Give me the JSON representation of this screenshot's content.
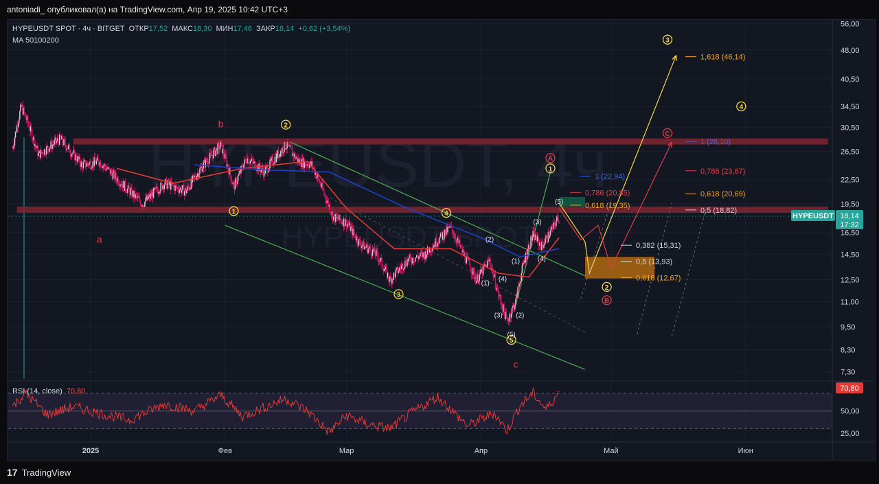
{
  "header": {
    "publish_line": "antoniadi_ опубликовал(а) на TradingView.com, Апр 19, 2025 10:42 UTC+3"
  },
  "legend": {
    "symbol": "HYPEUSDT SPOT · 4ч · BITGET",
    "open_label": "ОТКР",
    "open_value": "17,52",
    "high_label": "МАКС",
    "high_value": "18,30",
    "low_label": "МИН",
    "low_value": "17,46",
    "close_label": "ЗАКР",
    "close_value": "18,14",
    "change": "+0,62 (+3,54%)",
    "ma": "MA 50100200"
  },
  "watermark": {
    "main": "HYPEUSDT, 4ч",
    "sub": "HYPEUSDT SPOT"
  },
  "price_badge": {
    "symbol": "HYPEUSDT",
    "price": "18,14",
    "time": "17:32"
  },
  "rsi": {
    "label": "RSI (14, close)",
    "value_text": "70,80",
    "badge": "70,80"
  },
  "footer": {
    "brand": "TradingView",
    "logo": "17"
  },
  "colors": {
    "background": "#131722",
    "up": "#26a69a",
    "down": "#ef5350",
    "candles": "#c2185b",
    "ma_red": "#e53935",
    "ma_blue": "#1e40c8",
    "wave_yellow": "#f5d742",
    "wave_red": "#e53946",
    "fib_orange": "#f5a623",
    "fib_red": "#e53946",
    "fib_blue": "#3c6be0",
    "channel_green": "#4caf50",
    "zone_red": "#7a2530",
    "zone_orange": "#b06a10",
    "zone_green": "#0f5a46"
  },
  "chart_data": [
    {
      "type": "candlestick",
      "title": "HYPEUSDT SPOT · 4ч · BITGET",
      "x_ticks": [
        "2025",
        "Фев",
        "Мар",
        "Апр",
        "Май",
        "Июн"
      ],
      "y_ticks": [
        "56,00",
        "48,00",
        "40,50",
        "34,50",
        "30,50",
        "26,50",
        "22,50",
        "19,50",
        "16,50",
        "14,50",
        "12,50",
        "11,00",
        "9,50",
        "8,30",
        "7,30"
      ],
      "y_scale": "log",
      "ylim": [
        7.0,
        57.0
      ],
      "last": {
        "open": 17.52,
        "high": 18.3,
        "low": 17.46,
        "close": 18.14
      },
      "price_path_approx": [
        {
          "d": "2024-12-14",
          "v": 27.0
        },
        {
          "d": "2024-12-16",
          "v": 34.5
        },
        {
          "d": "2024-12-20",
          "v": 26.0
        },
        {
          "d": "2024-12-25",
          "v": 28.5
        },
        {
          "d": "2024-12-30",
          "v": 24.5
        },
        {
          "d": "2025-01-03",
          "v": 25.0
        },
        {
          "d": "2025-01-09",
          "v": 21.5
        },
        {
          "d": "2025-01-13",
          "v": 19.5
        },
        {
          "d": "2025-01-18",
          "v": 22.0
        },
        {
          "d": "2025-01-23",
          "v": 21.0
        },
        {
          "d": "2025-01-27",
          "v": 24.5
        },
        {
          "d": "2025-01-31",
          "v": 27.5
        },
        {
          "d": "2025-02-03",
          "v": 21.5
        },
        {
          "d": "2025-02-06",
          "v": 25.5
        },
        {
          "d": "2025-02-10",
          "v": 23.5
        },
        {
          "d": "2025-02-15",
          "v": 27.5
        },
        {
          "d": "2025-02-18",
          "v": 25.0
        },
        {
          "d": "2025-02-21",
          "v": 24.5
        },
        {
          "d": "2025-02-24",
          "v": 20.5
        },
        {
          "d": "2025-02-26",
          "v": 18.0
        },
        {
          "d": "2025-03-01",
          "v": 17.5
        },
        {
          "d": "2025-03-04",
          "v": 15.5
        },
        {
          "d": "2025-03-08",
          "v": 14.5
        },
        {
          "d": "2025-03-11",
          "v": 12.5
        },
        {
          "d": "2025-03-15",
          "v": 14.0
        },
        {
          "d": "2025-03-19",
          "v": 14.5
        },
        {
          "d": "2025-03-25",
          "v": 17.0
        },
        {
          "d": "2025-03-28",
          "v": 14.5
        },
        {
          "d": "2025-03-31",
          "v": 12.5
        },
        {
          "d": "2025-04-03",
          "v": 14.0
        },
        {
          "d": "2025-04-05",
          "v": 11.5
        },
        {
          "d": "2025-04-07",
          "v": 9.8
        },
        {
          "d": "2025-04-09",
          "v": 11.0
        },
        {
          "d": "2025-04-11",
          "v": 14.0
        },
        {
          "d": "2025-04-13",
          "v": 16.3
        },
        {
          "d": "2025-04-15",
          "v": 15.2
        },
        {
          "d": "2025-04-17",
          "v": 16.5
        },
        {
          "d": "2025-04-19",
          "v": 18.14
        }
      ],
      "moving_averages": [
        {
          "name": "MA 50",
          "color": "#e53935",
          "path_approx": [
            {
              "d": "2025-01-07",
              "v": 24.0
            },
            {
              "d": "2025-01-20",
              "v": 22.0
            },
            {
              "d": "2025-02-05",
              "v": 24.0
            },
            {
              "d": "2025-02-20",
              "v": 25.0
            },
            {
              "d": "2025-03-01",
              "v": 19.0
            },
            {
              "d": "2025-03-12",
              "v": 15.0
            },
            {
              "d": "2025-03-25",
              "v": 15.0
            },
            {
              "d": "2025-04-05",
              "v": 13.0
            },
            {
              "d": "2025-04-12",
              "v": 12.7
            },
            {
              "d": "2025-04-19",
              "v": 16.0
            }
          ]
        },
        {
          "name": "MA 100",
          "color": "#1e40c8",
          "path_approx": [
            {
              "d": "2025-01-25",
              "v": 24.5
            },
            {
              "d": "2025-02-10",
              "v": 23.8
            },
            {
              "d": "2025-02-25",
              "v": 23.5
            },
            {
              "d": "2025-03-15",
              "v": 19.0
            },
            {
              "d": "2025-04-01",
              "v": 16.0
            },
            {
              "d": "2025-04-10",
              "v": 14.3
            },
            {
              "d": "2025-04-19",
              "v": 15.0
            }
          ]
        }
      ],
      "zones": [
        {
          "kind": "resistance",
          "color": "#7a2530",
          "top": 28.6,
          "bottom": 27.6,
          "from": "2024-12-28",
          "to": "2025-06-20"
        },
        {
          "kind": "resistance",
          "color": "#7a2530",
          "top": 19.2,
          "bottom": 18.5,
          "from": "2024-12-15",
          "to": "2025-06-20"
        },
        {
          "kind": "target",
          "color": "#0f5a46",
          "top": 20.3,
          "bottom": 19.2,
          "from": "2025-04-19",
          "to": "2025-04-25"
        },
        {
          "kind": "support",
          "color": "#b06a10",
          "top": 14.3,
          "bottom": 12.6,
          "from": "2025-04-25",
          "to": "2025-05-11"
        }
      ],
      "fib_levels": [
        {
          "label": "1,618 (46,14)",
          "value": 46.14,
          "color": "#f5a623"
        },
        {
          "label": "1 (28,10)",
          "value": 28.1,
          "color": "#3c6be0"
        },
        {
          "label": "0,786 (23,67)",
          "value": 23.67,
          "color": "#e53946"
        },
        {
          "label": "1 (22,94)",
          "value": 22.94,
          "color": "#3c6be0"
        },
        {
          "label": "0,786 (20,85)",
          "value": 20.85,
          "color": "#e53946"
        },
        {
          "label": "0,618 (20,69)",
          "value": 20.69,
          "color": "#f5a623"
        },
        {
          "label": "0,618 (19,35)",
          "value": 19.35,
          "color": "#f5a623"
        },
        {
          "label": "0,5 (18,82)",
          "value": 18.82,
          "color": "#d1d4dc"
        },
        {
          "label": "0,382 (15,31)",
          "value": 15.31,
          "color": "#d1d4dc"
        },
        {
          "label": "0,5 (13,93)",
          "value": 13.93,
          "color": "#d1d4dc"
        },
        {
          "label": "0,618 (12,67)",
          "value": 12.67,
          "color": "#f5a623"
        }
      ],
      "wave_labels": [
        {
          "text": "a",
          "d": "2025-01-03",
          "v": 15.8,
          "style": "plain-red"
        },
        {
          "text": "b",
          "d": "2025-01-31",
          "v": 31.0,
          "style": "plain-red"
        },
        {
          "text": "c",
          "d": "2025-04-09",
          "v": 7.6,
          "style": "plain-red"
        },
        {
          "text": "1",
          "d": "2025-02-03",
          "v": 18.7,
          "style": "circle-yellow"
        },
        {
          "text": "2",
          "d": "2025-02-15",
          "v": 31.0,
          "style": "circle-yellow"
        },
        {
          "text": "3",
          "d": "2025-03-13",
          "v": 11.5,
          "style": "circle-yellow"
        },
        {
          "text": "4",
          "d": "2025-03-24",
          "v": 18.5,
          "style": "circle-yellow"
        },
        {
          "text": "5",
          "d": "2025-04-08",
          "v": 8.8,
          "style": "circle-yellow"
        },
        {
          "text": "1",
          "d": "2025-04-17",
          "v": 24.0,
          "style": "circle-yellow"
        },
        {
          "text": "2",
          "d": "2025-04-30",
          "v": 12.0,
          "style": "circle-yellow"
        },
        {
          "text": "3",
          "d": "2025-05-14",
          "v": 51.0,
          "style": "circle-yellow"
        },
        {
          "text": "4",
          "d": "2025-05-31",
          "v": 34.5,
          "style": "circle-yellow"
        },
        {
          "text": "A",
          "d": "2025-04-17",
          "v": 25.5,
          "style": "circle-red"
        },
        {
          "text": "B",
          "d": "2025-04-30",
          "v": 11.1,
          "style": "circle-red"
        },
        {
          "text": "C",
          "d": "2025-05-14",
          "v": 29.5,
          "style": "circle-red"
        },
        {
          "text": "(1)",
          "d": "2025-04-02",
          "v": 12.3,
          "style": "paren"
        },
        {
          "text": "(2)",
          "d": "2025-04-03",
          "v": 15.9,
          "style": "paren"
        },
        {
          "text": "(3)",
          "d": "2025-04-05",
          "v": 10.2,
          "style": "paren"
        },
        {
          "text": "(4)",
          "d": "2025-04-06",
          "v": 12.6,
          "style": "paren"
        },
        {
          "text": "(5)",
          "d": "2025-04-08",
          "v": 9.1,
          "style": "paren"
        },
        {
          "text": "(1)",
          "d": "2025-04-09",
          "v": 14.0,
          "style": "paren"
        },
        {
          "text": "(2)",
          "d": "2025-04-10",
          "v": 10.2,
          "style": "paren"
        },
        {
          "text": "(3)",
          "d": "2025-04-14",
          "v": 17.6,
          "style": "paren"
        },
        {
          "text": "(4)",
          "d": "2025-04-15",
          "v": 14.2,
          "style": "paren"
        },
        {
          "text": "(5)",
          "d": "2025-04-19",
          "v": 19.8,
          "style": "paren"
        }
      ]
    },
    {
      "type": "line",
      "title": "RSI (14, close)",
      "last_value": 70.8,
      "y_ticks": [
        "75,00",
        "50,00",
        "25,00"
      ],
      "ylim": [
        18,
        80
      ],
      "bands": [
        70,
        50,
        30
      ],
      "path_approx": [
        {
          "d": "2024-12-14",
          "v": 55
        },
        {
          "d": "2024-12-17",
          "v": 70
        },
        {
          "d": "2024-12-22",
          "v": 46
        },
        {
          "d": "2024-12-28",
          "v": 55
        },
        {
          "d": "2025-01-05",
          "v": 45
        },
        {
          "d": "2025-01-10",
          "v": 40
        },
        {
          "d": "2025-01-18",
          "v": 58
        },
        {
          "d": "2025-01-25",
          "v": 50
        },
        {
          "d": "2025-01-31",
          "v": 68
        },
        {
          "d": "2025-02-05",
          "v": 44
        },
        {
          "d": "2025-02-15",
          "v": 64
        },
        {
          "d": "2025-02-20",
          "v": 50
        },
        {
          "d": "2025-02-25",
          "v": 26
        },
        {
          "d": "2025-03-01",
          "v": 45
        },
        {
          "d": "2025-03-06",
          "v": 35
        },
        {
          "d": "2025-03-11",
          "v": 30
        },
        {
          "d": "2025-03-16",
          "v": 48
        },
        {
          "d": "2025-03-22",
          "v": 66
        },
        {
          "d": "2025-03-29",
          "v": 33
        },
        {
          "d": "2025-04-04",
          "v": 48
        },
        {
          "d": "2025-04-07",
          "v": 28
        },
        {
          "d": "2025-04-10",
          "v": 56
        },
        {
          "d": "2025-04-13",
          "v": 70
        },
        {
          "d": "2025-04-16",
          "v": 52
        },
        {
          "d": "2025-04-19",
          "v": 70.8
        }
      ]
    }
  ]
}
